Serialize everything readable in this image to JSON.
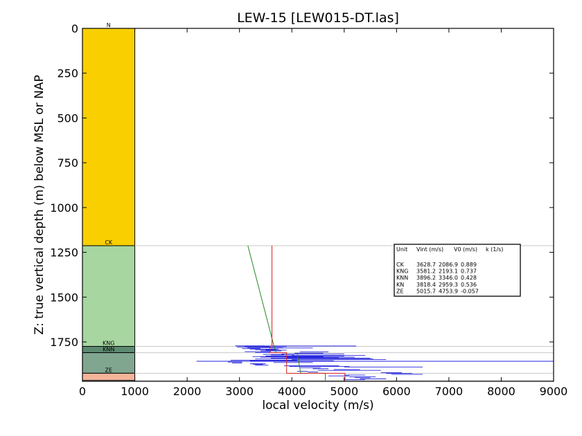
{
  "chart_data": {
    "type": "line",
    "title": "LEW-15 [LEW015-DT.las]",
    "xlabel": "local velocity (m/s)",
    "ylabel": "Z: true vertical depth (m) below MSL or NAP",
    "xlim": [
      0,
      9000
    ],
    "ylim": [
      1970,
      0
    ],
    "xticks": [
      "0",
      "1000",
      "2000",
      "3000",
      "4000",
      "5000",
      "6000",
      "7000",
      "8000",
      "9000"
    ],
    "yticks": [
      "0",
      "250",
      "500",
      "750",
      "1000",
      "1250",
      "1500",
      "1750"
    ],
    "grid": false,
    "units": [
      {
        "name": "N",
        "top": 0,
        "base": 1213,
        "color": "#f9cf00"
      },
      {
        "name": "CK",
        "top": 1213,
        "base": 1775,
        "color": "#a7d6a1"
      },
      {
        "name": "KNG",
        "top": 1775,
        "base": 1810,
        "color": "#5d8a70"
      },
      {
        "name": "KNN",
        "top": 1810,
        "base": 1925,
        "color": "#80a690"
      },
      {
        "name": "ZE",
        "top": 1925,
        "base": 1965,
        "color": "#f4b49a"
      }
    ],
    "table": {
      "header": [
        "Unit",
        "Vint (m/s)",
        "V0 (m/s)",
        "k (1/s)"
      ],
      "rows": [
        [
          "CK",
          "3628.7",
          "2086.9",
          "0.889"
        ],
        [
          "KNG",
          "3581.2",
          "2193.1",
          "0.737"
        ],
        [
          "KNN",
          "3896.2",
          "3346.0",
          "0.428"
        ],
        [
          "KN",
          "3818.4",
          "2959.3",
          "0.536"
        ],
        [
          "ZE",
          "5015.7",
          "4753.9",
          "-0.057"
        ]
      ]
    },
    "interval_velocity_steps": {
      "color": "#dd2222",
      "points": [
        [
          3620,
          1213
        ],
        [
          3620,
          1775
        ],
        [
          3580,
          1775
        ],
        [
          3580,
          1810
        ],
        [
          3900,
          1810
        ],
        [
          3900,
          1925
        ],
        [
          5015,
          1925
        ],
        [
          5015,
          1965
        ]
      ]
    },
    "v0k_model_lines": {
      "color": "#228822",
      "segments": [
        [
          [
            3160,
            1213
          ],
          [
            3660,
            1775
          ]
        ],
        [
          [
            3660,
            1775
          ],
          [
            3700,
            1810
          ]
        ],
        [
          [
            4100,
            1810
          ],
          [
            4170,
            1925
          ]
        ],
        [
          [
            4170,
            1925
          ],
          [
            4640,
            1925
          ],
          [
            4640,
            1965
          ]
        ]
      ]
    },
    "log_velocity": {
      "color": "#2222dd",
      "samples": [
        [
          2920,
          3480,
          1772
        ],
        [
          3100,
          3900,
          1776
        ],
        [
          2950,
          3600,
          1779
        ],
        [
          3150,
          3830,
          1782
        ],
        [
          3480,
          5230,
          1773
        ],
        [
          3600,
          4400,
          1784
        ],
        [
          3050,
          3400,
          1787
        ],
        [
          3200,
          3750,
          1790
        ],
        [
          3300,
          3700,
          1793
        ],
        [
          3500,
          3900,
          1796
        ],
        [
          3400,
          3800,
          1800
        ],
        [
          3100,
          3600,
          1804
        ],
        [
          4150,
          4700,
          1806
        ],
        [
          3300,
          3900,
          1810
        ],
        [
          4050,
          4600,
          1813
        ],
        [
          3800,
          5000,
          1817
        ],
        [
          3450,
          3850,
          1820
        ],
        [
          3600,
          4050,
          1823
        ],
        [
          4000,
          5400,
          1826
        ],
        [
          3500,
          5000,
          1829
        ],
        [
          3250,
          4600,
          1832
        ],
        [
          3400,
          5200,
          1835
        ],
        [
          3900,
          4900,
          1838
        ],
        [
          3600,
          5500,
          1841
        ],
        [
          3300,
          5550,
          1845
        ],
        [
          4000,
          5800,
          1848
        ],
        [
          2830,
          4100,
          1852
        ],
        [
          3200,
          4800,
          1855
        ],
        [
          2180,
          9000,
          1858
        ],
        [
          2780,
          3050,
          1862
        ],
        [
          3650,
          4400,
          1865
        ],
        [
          2860,
          3050,
          1868
        ],
        [
          3200,
          3500,
          1872
        ],
        [
          3260,
          3450,
          1876
        ],
        [
          3300,
          3550,
          1880
        ],
        [
          3850,
          4900,
          1883
        ],
        [
          3950,
          5100,
          1887
        ],
        [
          5000,
          6500,
          1890
        ],
        [
          4150,
          4550,
          1894
        ],
        [
          4400,
          4700,
          1900
        ],
        [
          4800,
          5300,
          1904
        ],
        [
          4500,
          5700,
          1909
        ],
        [
          4100,
          4300,
          1914
        ],
        [
          4300,
          4500,
          1918
        ],
        [
          5700,
          6100,
          1922
        ],
        [
          5800,
          6300,
          1926
        ],
        [
          5900,
          6500,
          1931
        ],
        [
          5000,
          5400,
          1935
        ],
        [
          4700,
          5100,
          1940
        ],
        [
          5100,
          5600,
          1945
        ],
        [
          5200,
          5500,
          1950
        ],
        [
          5300,
          5800,
          1956
        ],
        [
          5000,
          5400,
          1961
        ]
      ]
    },
    "horizon_lines": [
      1213,
      1775,
      1810,
      1925,
      1965
    ]
  }
}
